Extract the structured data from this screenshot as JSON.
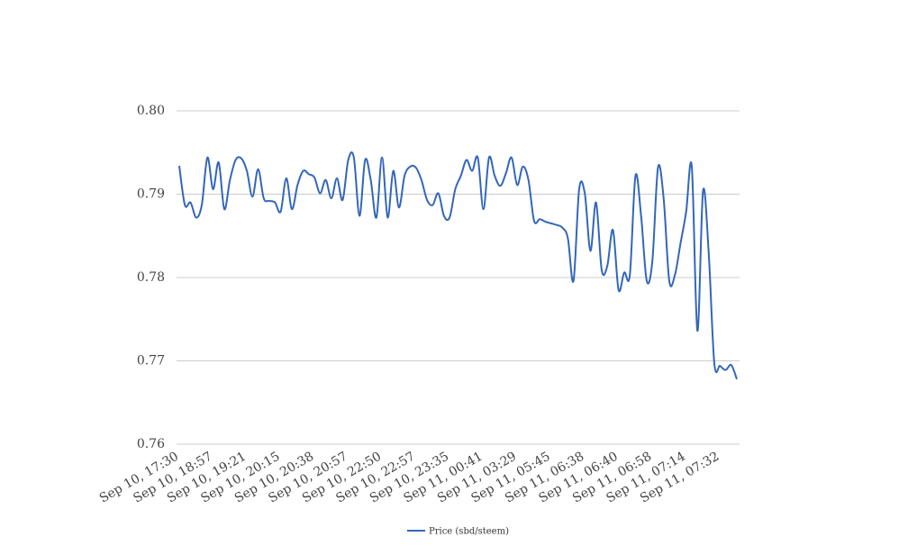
{
  "chart_data": {
    "type": "line",
    "categories": [
      "Sep 10, 17:30",
      null,
      null,
      null,
      null,
      null,
      "Sep 10, 18:57",
      null,
      null,
      null,
      null,
      null,
      "Sep 10, 19:21",
      null,
      null,
      null,
      null,
      null,
      "Sep 10, 20:15",
      null,
      null,
      null,
      null,
      null,
      "Sep 10, 20:38",
      null,
      null,
      null,
      null,
      null,
      "Sep 10, 20:57",
      null,
      null,
      null,
      null,
      null,
      "Sep 10, 22:50",
      null,
      null,
      null,
      null,
      null,
      "Sep 10, 22:57",
      null,
      null,
      null,
      null,
      null,
      "Sep 10, 23:35",
      null,
      null,
      null,
      null,
      null,
      "Sep 11, 00:41",
      null,
      null,
      null,
      null,
      null,
      "Sep 11, 03:29",
      null,
      null,
      null,
      null,
      null,
      "Sep 11, 05:45",
      null,
      null,
      null,
      null,
      null,
      "Sep 11, 06:38",
      null,
      null,
      null,
      null,
      null,
      "Sep 11, 06:40",
      null,
      null,
      null,
      null,
      null,
      "Sep 11, 06:58",
      null,
      null,
      null,
      null,
      null,
      "Sep 11, 07:14",
      null,
      null,
      null,
      null,
      null,
      "Sep 11, 07:32",
      null,
      null,
      null
    ],
    "series": [
      {
        "name": "Price (sbd/steem)",
        "color": "#3366bb",
        "values": [
          0.7934,
          0.7887,
          0.789,
          0.7872,
          0.7887,
          0.7944,
          0.7906,
          0.7938,
          0.7882,
          0.7917,
          0.7941,
          0.7943,
          0.7928,
          0.7897,
          0.793,
          0.7895,
          0.7892,
          0.789,
          0.7879,
          0.7919,
          0.7882,
          0.7911,
          0.7928,
          0.7924,
          0.792,
          0.7901,
          0.7917,
          0.7895,
          0.7919,
          0.7893,
          0.7941,
          0.7944,
          0.7874,
          0.7941,
          0.7917,
          0.7872,
          0.7944,
          0.7872,
          0.7928,
          0.7884,
          0.7922,
          0.7933,
          0.7932,
          0.7917,
          0.7893,
          0.7887,
          0.7901,
          0.7874,
          0.7872,
          0.7906,
          0.7922,
          0.7941,
          0.7928,
          0.7944,
          0.7882,
          0.7944,
          0.7922,
          0.791,
          0.7925,
          0.7944,
          0.7911,
          0.7933,
          0.7917,
          0.7868,
          0.787,
          0.7867,
          0.7865,
          0.7863,
          0.786,
          0.7847,
          0.7796,
          0.7906,
          0.7901,
          0.7832,
          0.789,
          0.7809,
          0.7814,
          0.7857,
          0.7785,
          0.7806,
          0.7803,
          0.7922,
          0.7874,
          0.7796,
          0.782,
          0.7932,
          0.7895,
          0.7796,
          0.7803,
          0.7841,
          0.7879,
          0.7933,
          0.7736,
          0.7904,
          0.783,
          0.7697,
          0.7694,
          0.7689,
          0.7695,
          0.7678
        ]
      }
    ],
    "ylim": [
      0.76,
      0.8
    ],
    "yticks": [
      0.76,
      0.77,
      0.78,
      0.79,
      {
        "value": 0.8,
        "label": "0.80"
      }
    ],
    "grid": true,
    "legend": "bottom"
  }
}
